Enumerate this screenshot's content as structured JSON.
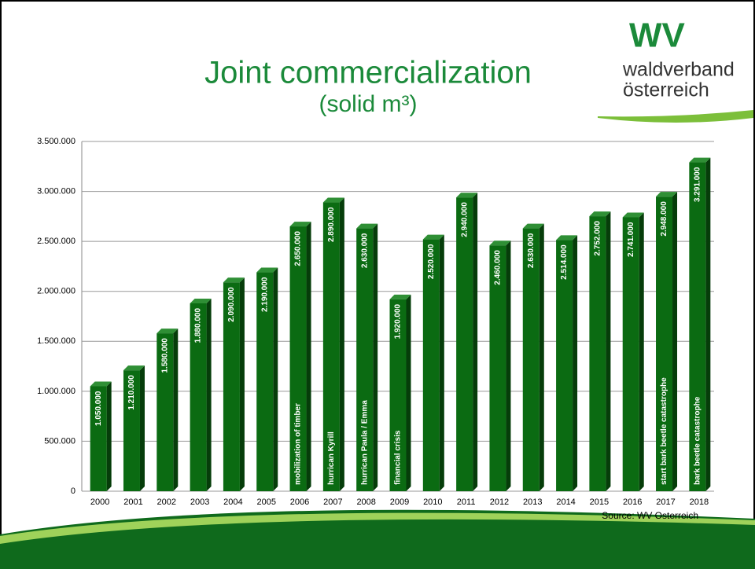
{
  "chart_data": {
    "type": "bar",
    "title": "Joint commercialization",
    "subtitle": "(solid m³)",
    "logo": {
      "mark": "WV",
      "line1": "waldverband",
      "line2": "österreich"
    },
    "source": "Source: WV Osterreich",
    "color": "#0b6b12",
    "categories": [
      "2000",
      "2001",
      "2002",
      "2003",
      "2004",
      "2005",
      "2006",
      "2007",
      "2008",
      "2009",
      "2010",
      "2011",
      "2012",
      "2013",
      "2014",
      "2015",
      "2016",
      "2017",
      "2018"
    ],
    "values": [
      1050000,
      1210000,
      1580000,
      1880000,
      2090000,
      2190000,
      2650000,
      2890000,
      2630000,
      1920000,
      2520000,
      2940000,
      2460000,
      2630000,
      2514000,
      2752000,
      2741000,
      2948000,
      3291000
    ],
    "value_labels": [
      "1.050.000",
      "1.210.000",
      "1.580.000",
      "1.880.000",
      "2.090.000",
      "2.190.000",
      "2.650.000",
      "2.890.000",
      "2.630.000",
      "1.920.000",
      "2.520.000",
      "2.940.000",
      "2.460.000",
      "2.630.000",
      "2.514.000",
      "2.752.000",
      "2.741.000",
      "2.948.000",
      "3.291.000"
    ],
    "annotations": [
      {
        "x": "2006",
        "text": "mobilization of timber"
      },
      {
        "x": "2007",
        "text": "hurrican Kyrill"
      },
      {
        "x": "2008",
        "text": "hurrican Paula / Emma"
      },
      {
        "x": "2009",
        "text": "financial crisis"
      },
      {
        "x": "2017",
        "text": "start bark beetle catastrophe"
      },
      {
        "x": "2018",
        "text": "bark beetle catastrophe"
      }
    ],
    "ylim": [
      0,
      3500000
    ],
    "yticks": [
      0,
      {
        "value": 500000,
        "label": "500.000"
      },
      {
        "value": 1000000,
        "label": "1.000.000"
      },
      {
        "value": 1500000,
        "label": "1.500.000"
      },
      {
        "value": 2000000,
        "label": "2.000.000"
      },
      {
        "value": 2500000,
        "label": "2.500.000"
      },
      {
        "value": 3000000,
        "label": "3.000.000"
      },
      {
        "value": 3500000,
        "label": "3.500.000"
      }
    ],
    "grid": true
  }
}
